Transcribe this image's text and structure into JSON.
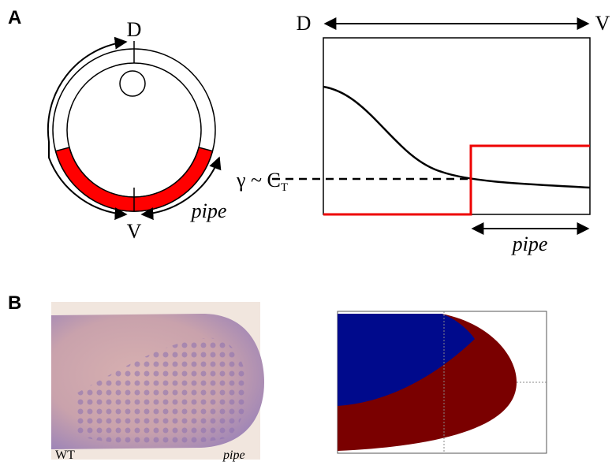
{
  "panel_a": {
    "label": "A",
    "circle": {
      "top": "D",
      "bottom": "V",
      "region": "pipe"
    },
    "plot": {
      "left": "D",
      "right": "V",
      "threshold": "γ ~ C",
      "threshold_sub": "T",
      "region": "pipe"
    }
  },
  "panel_b": {
    "label": "B",
    "photo": {
      "genotype": "WT",
      "gene": "pipe"
    }
  }
}
